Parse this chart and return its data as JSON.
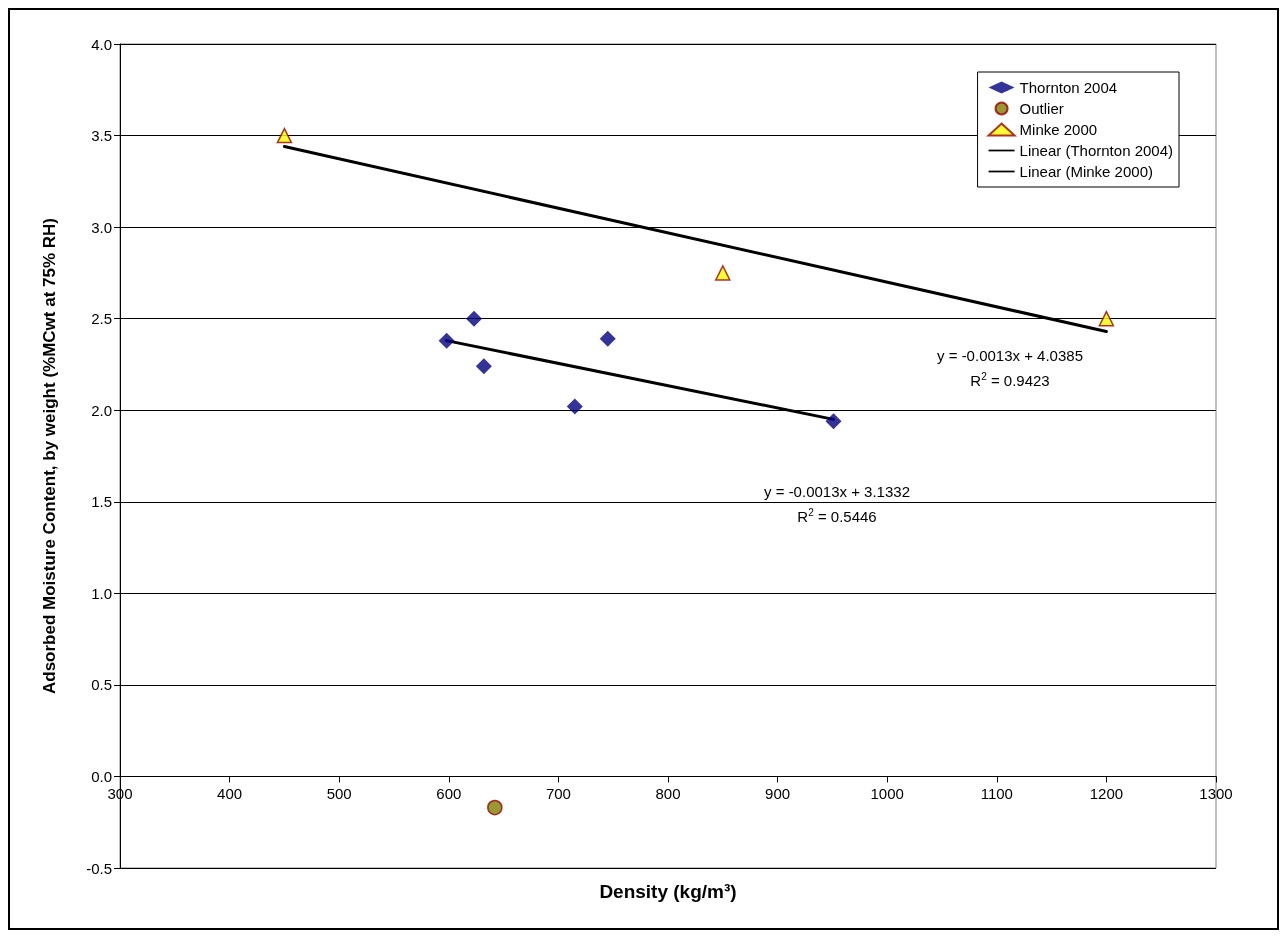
{
  "chart_data": {
    "type": "scatter",
    "xlabel": "Density (kg/m³)",
    "ylabel": "Adsorbed Moisture Content, by weight (%MCwt at 75% RH)",
    "xlim": [
      300,
      1300
    ],
    "xticks": [
      300,
      400,
      500,
      600,
      700,
      800,
      900,
      1000,
      1100,
      1200,
      1300
    ],
    "ylim": [
      -0.5,
      4
    ],
    "yticks": [
      {
        "value": -0.5,
        "label": "-0.5"
      },
      {
        "value": 0,
        "label": "0.0"
      },
      {
        "value": 0.5,
        "label": "0.5"
      },
      {
        "value": 1,
        "label": "1.0"
      },
      {
        "value": 1.5,
        "label": "1.5"
      },
      {
        "value": 2,
        "label": "2.0"
      },
      {
        "value": 2.5,
        "label": "2.5"
      },
      {
        "value": 3,
        "label": "3.0"
      },
      {
        "value": 3.5,
        "label": "3.5"
      },
      {
        "value": 4,
        "label": "4.0"
      }
    ],
    "grid": "y",
    "legend": "top right",
    "series": [
      {
        "name": "Thornton 2004",
        "color": "#000080",
        "marker": "diamond",
        "x": [
          598,
          623,
          632,
          715,
          745,
          951
        ],
        "values": [
          2.38,
          2.5,
          2.24,
          2.02,
          2.39,
          1.94
        ]
      },
      {
        "name": "Outlier",
        "color": "#808000",
        "marker": "circle",
        "x": [
          642
        ],
        "values": [
          -0.17
        ]
      },
      {
        "name": "Minke 2000",
        "color": "#ffff00",
        "marker": "triangle",
        "x": [
          450,
          850,
          1200
        ],
        "values": [
          3.5,
          2.75,
          2.5
        ]
      },
      {
        "name": "Linear (Thornton 2004)",
        "type": "line",
        "color": "#000000",
        "marker": "none",
        "x": [
          598,
          951
        ],
        "values": [
          2.38,
          1.95
        ]
      },
      {
        "name": "Linear (Minke 2000)",
        "type": "line",
        "color": "#000000",
        "marker": "none",
        "x": [
          450,
          1200
        ],
        "values": [
          3.44,
          2.43
        ]
      }
    ],
    "annotations": [
      "y = -0.0013x + 4.0385",
      "R$^{2}$ = 0.9423",
      "y = -0.0013x + 3.1332",
      "R$^{2}$ = 0.5446"
    ]
  }
}
